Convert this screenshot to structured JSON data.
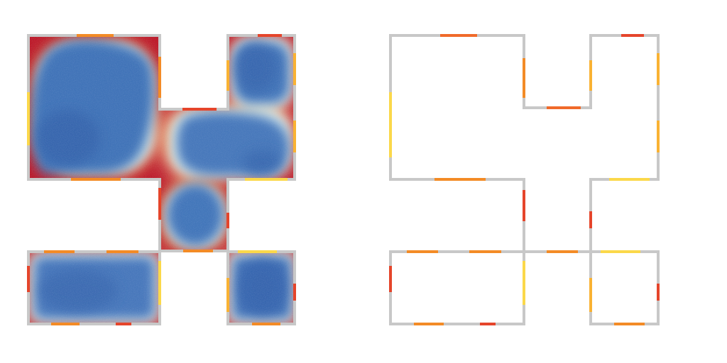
{
  "colors": {
    "background": "#ffffff",
    "wall": "#c8c8c8",
    "heat_blue": "#3d6fb6",
    "heat_light": "#e3f1f6",
    "heat_red": "#b0102a",
    "segment_red": "#e5452b",
    "segment_orange": "#f38b26",
    "segment_amber": "#f9b233",
    "segment_yellow": "#fbd84a"
  },
  "panels": [
    {
      "name": "heatmap-floorplan",
      "fill": "heatmap"
    },
    {
      "name": "outline-floorplan",
      "fill": "none"
    }
  ]
}
